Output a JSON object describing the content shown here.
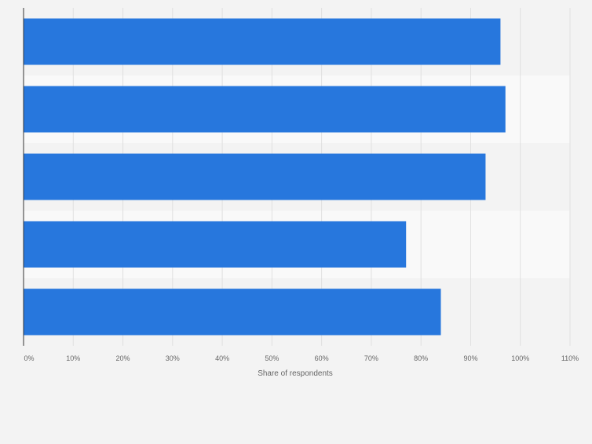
{
  "chart_data": {
    "type": "bar",
    "orientation": "horizontal",
    "title": "",
    "xlabel": "Share of respondents",
    "ylabel": "",
    "categories": [
      "",
      "",
      "",
      "",
      ""
    ],
    "values": [
      96,
      97,
      93,
      77,
      84
    ],
    "xlim": [
      0,
      110
    ],
    "xticks": [
      "0%",
      "10%",
      "20%",
      "30%",
      "40%",
      "50%",
      "60%",
      "70%",
      "80%",
      "90%",
      "100%",
      "110%"
    ],
    "grid": true,
    "bar_color": "#2777dd",
    "band_colors": [
      "#f3f3f3",
      "#f9f9f9"
    ],
    "background": "#f3f3f3"
  }
}
